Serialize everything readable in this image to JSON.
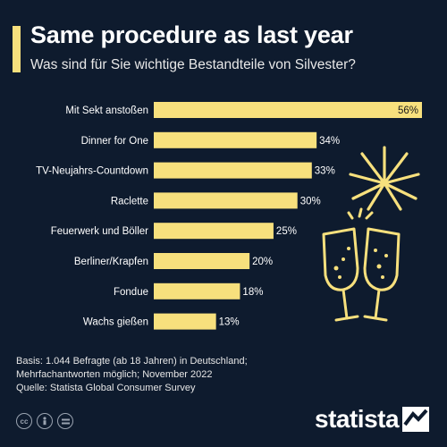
{
  "header": {
    "title": "Same procedure as last year",
    "subtitle": "Was sind für Sie wichtige Bestandteile von Silvester?"
  },
  "colors": {
    "background": "#0e1b2e",
    "bar": "#f7e07d",
    "accent": "#f7e07d",
    "text": "#ffffff"
  },
  "chart_data": {
    "type": "bar",
    "orientation": "horizontal",
    "categories": [
      "Mit Sekt anstoßen",
      "Dinner for One",
      "TV-Neujahrs-Countdown",
      "Raclette",
      "Feuerwerk und Böller",
      "Berliner/Krapfen",
      "Fondue",
      "Wachs gießen"
    ],
    "values": [
      56,
      34,
      33,
      30,
      25,
      20,
      18,
      13
    ],
    "value_labels": [
      "56%",
      "34%",
      "33%",
      "30%",
      "25%",
      "20%",
      "18%",
      "13%"
    ],
    "unit": "%",
    "xlim": [
      0,
      56
    ],
    "grid": false,
    "legend": false
  },
  "footer": {
    "basis_line1": "Basis: 1.044 Befragte (ab 18 Jahren) in Deutschland;",
    "basis_line2": "Mehrfachantworten möglich; November 2022",
    "source": "Quelle: Statista Global Consumer Survey"
  },
  "license_icons": [
    "cc-icon",
    "by-person-icon",
    "nd-equals-icon"
  ],
  "brand": {
    "name": "statista"
  },
  "decoration_icons": [
    "fireworks-icon",
    "champagne-glasses-icon"
  ]
}
